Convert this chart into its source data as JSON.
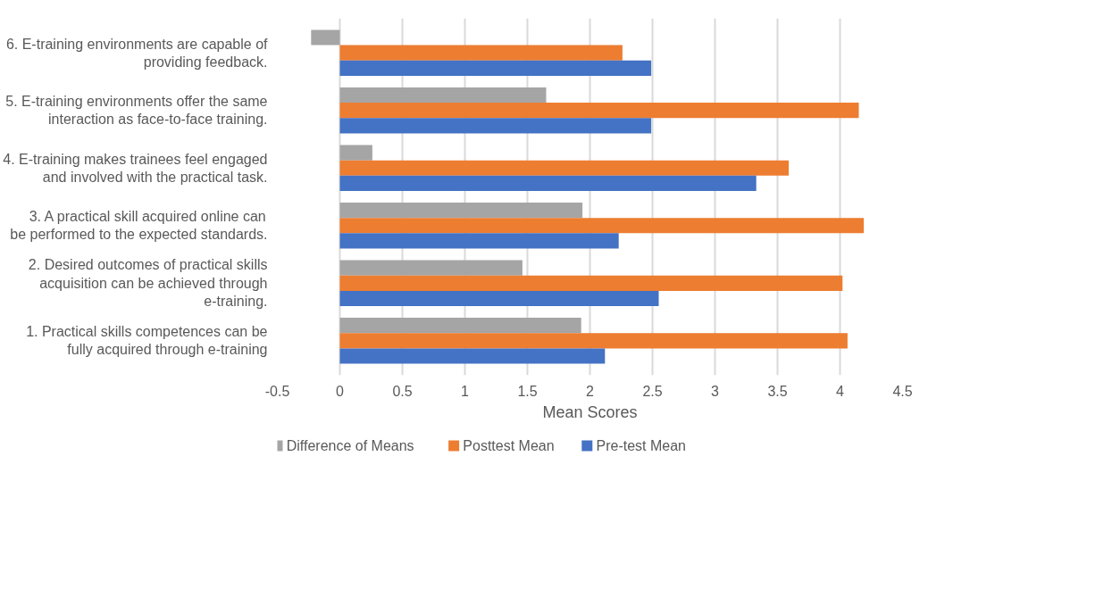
{
  "chart_data": {
    "type": "bar",
    "orientation": "horizontal",
    "xlabel": "Mean Scores",
    "categories": [
      "6. E-training environments are capable of providing feedback.",
      "5. E-training environments offer the same interaction as face-to-face training.",
      "4. E-training makes trainees feel engaged and involved with the practical task.",
      "3. A practical skill acquired online can be performed to the expected standards.",
      "2. Desired outcomes of practical skills acquisition can be achieved through e-training.",
      "1. Practical skills competences can be fully acquired through e-training"
    ],
    "series": [
      {
        "name": "Difference of Means",
        "color": "#a5a5a5",
        "values": [
          -0.23,
          1.65,
          0.26,
          1.94,
          1.46,
          1.93
        ]
      },
      {
        "name": "Posttest Mean",
        "color": "#ed7d31",
        "values": [
          2.26,
          4.15,
          3.59,
          4.19,
          4.02,
          4.06
        ]
      },
      {
        "name": "Pre-test Mean",
        "color": "#4472c4",
        "values": [
          2.49,
          2.49,
          3.33,
          2.23,
          2.55,
          2.12
        ]
      }
    ],
    "xlim": [
      -0.5,
      4.5
    ],
    "xticks": [
      -0.5,
      0,
      0.5,
      1,
      1.5,
      2,
      2.5,
      3,
      3.5,
      4,
      4.5
    ],
    "grid": "x",
    "legend": "bottom left"
  }
}
